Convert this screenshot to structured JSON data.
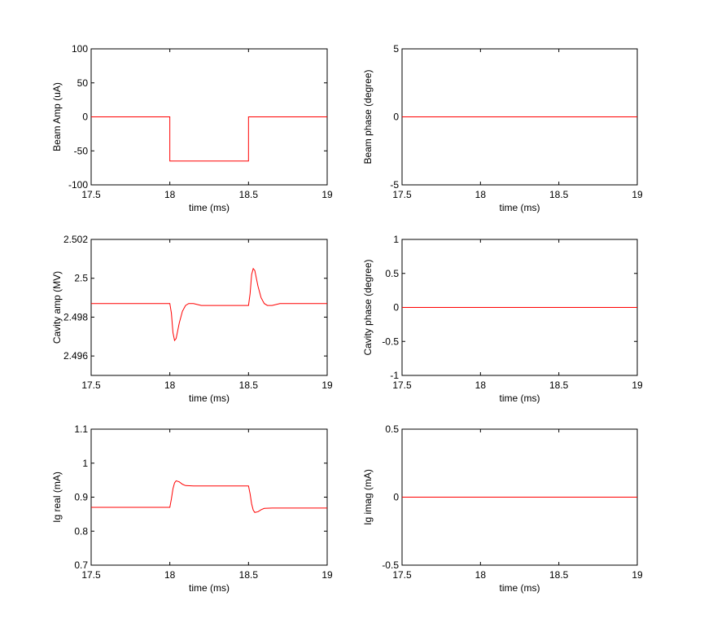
{
  "chart_data": [
    {
      "type": "line",
      "xlabel": "time (ms)",
      "ylabel": "Beam Amp (uA)",
      "xlim": [
        17.5,
        19
      ],
      "ylim": [
        -100,
        100
      ],
      "xticks": [
        "17.5",
        "18",
        "18.5",
        "19"
      ],
      "yticks": [
        "-100",
        "-50",
        "0",
        "50",
        "100"
      ],
      "grid": false,
      "series": [
        {
          "color": "#ff0000",
          "x": [
            17.5,
            18.0,
            18.0,
            18.5,
            18.5,
            19.0
          ],
          "y": [
            0,
            0,
            -65,
            -65,
            0,
            0
          ]
        }
      ]
    },
    {
      "type": "line",
      "xlabel": "time (ms)",
      "ylabel": "Beam phase (degree)",
      "xlim": [
        17.5,
        19
      ],
      "ylim": [
        -5,
        5
      ],
      "xticks": [
        "17.5",
        "18",
        "18.5",
        "19"
      ],
      "yticks": [
        "-5",
        "0",
        "5"
      ],
      "grid": false,
      "series": [
        {
          "color": "#ff0000",
          "x": [
            17.5,
            19.0
          ],
          "y": [
            0,
            0
          ]
        }
      ]
    },
    {
      "type": "line",
      "xlabel": "time (ms)",
      "ylabel": "Cavity amp (MV)",
      "xlim": [
        17.5,
        19
      ],
      "ylim": [
        2.495,
        2.502
      ],
      "xticks": [
        "17.5",
        "18",
        "18.5",
        "19"
      ],
      "yticks": [
        "2.496",
        "2.498",
        "2.5",
        "2.502"
      ],
      "ytick_values": [
        2.496,
        2.498,
        2.5,
        2.502
      ],
      "grid": false,
      "series": [
        {
          "color": "#ff0000",
          "x": [
            17.5,
            18.0,
            18.01,
            18.02,
            18.03,
            18.04,
            18.06,
            18.08,
            18.1,
            18.12,
            18.15,
            18.2,
            18.5,
            18.51,
            18.52,
            18.53,
            18.54,
            18.56,
            18.58,
            18.6,
            18.62,
            18.65,
            18.7,
            19.0
          ],
          "y": [
            2.4987,
            2.4987,
            2.4982,
            2.4972,
            2.4968,
            2.4969,
            2.4977,
            2.4983,
            2.4986,
            2.4987,
            2.4987,
            2.4986,
            2.4986,
            2.4992,
            2.5002,
            2.5005,
            2.5004,
            2.4996,
            2.499,
            2.4987,
            2.4986,
            2.4986,
            2.4987,
            2.4987
          ]
        }
      ]
    },
    {
      "type": "line",
      "xlabel": "time (ms)",
      "ylabel": "Cavity phase (degree)",
      "xlim": [
        17.5,
        19
      ],
      "ylim": [
        -1,
        1
      ],
      "xticks": [
        "17.5",
        "18",
        "18.5",
        "19"
      ],
      "yticks": [
        "-1",
        "-0.5",
        "0",
        "0.5",
        "1"
      ],
      "grid": false,
      "series": [
        {
          "color": "#ff0000",
          "x": [
            17.5,
            19.0
          ],
          "y": [
            0,
            0
          ]
        }
      ]
    },
    {
      "type": "line",
      "xlabel": "time (ms)",
      "ylabel": "Ig real (mA)",
      "xlim": [
        17.5,
        19
      ],
      "ylim": [
        0.7,
        1.1
      ],
      "xticks": [
        "17.5",
        "18",
        "18.5",
        "19"
      ],
      "yticks": [
        "0.7",
        "0.8",
        "0.9",
        "1",
        "1.1"
      ],
      "grid": false,
      "series": [
        {
          "color": "#ff0000",
          "x": [
            17.5,
            18.0,
            18.01,
            18.02,
            18.03,
            18.04,
            18.06,
            18.08,
            18.1,
            18.15,
            18.5,
            18.51,
            18.52,
            18.53,
            18.54,
            18.56,
            18.58,
            18.6,
            18.65,
            19.0
          ],
          "y": [
            0.87,
            0.87,
            0.895,
            0.925,
            0.942,
            0.948,
            0.945,
            0.938,
            0.934,
            0.933,
            0.933,
            0.91,
            0.88,
            0.862,
            0.855,
            0.857,
            0.863,
            0.867,
            0.868,
            0.868
          ]
        }
      ]
    },
    {
      "type": "line",
      "xlabel": "time (ms)",
      "ylabel": "Ig imag (mA)",
      "xlim": [
        17.5,
        19
      ],
      "ylim": [
        -0.5,
        0.5
      ],
      "xticks": [
        "17.5",
        "18",
        "18.5",
        "19"
      ],
      "yticks": [
        "-0.5",
        "0",
        "0.5"
      ],
      "grid": false,
      "series": [
        {
          "color": "#ff0000",
          "x": [
            17.5,
            19.0
          ],
          "y": [
            0,
            0
          ]
        }
      ]
    }
  ]
}
